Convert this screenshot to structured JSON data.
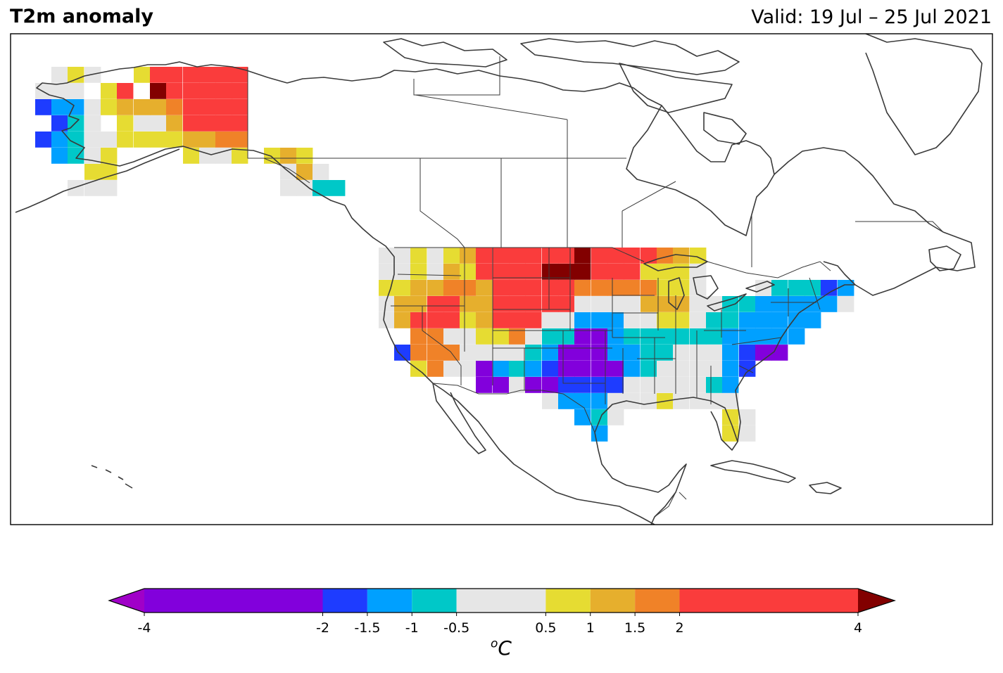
{
  "header": {
    "title": "T2m anomaly",
    "valid": "Valid: 19 Jul – 25 Jul 2021"
  },
  "colorbar": {
    "unit_base": "C",
    "unit_sup": "o",
    "levels": [
      -4,
      -2,
      -1.5,
      -1,
      -0.5,
      0.5,
      1,
      1.5,
      2,
      4
    ],
    "tick_labels": [
      "-4",
      "-2",
      "-1.5",
      "-1",
      "-0.5",
      "0.5",
      "1",
      "1.5",
      "2",
      "4"
    ],
    "colors": [
      "#8200dc",
      "#1e3cff",
      "#00a0ff",
      "#00c8c8",
      "#e6e6e6",
      "#e6dc32",
      "#e6af2d",
      "#f08228",
      "#fa3c3c"
    ],
    "under_color": "#a000c8",
    "over_color": "#820000",
    "extend": "both"
  },
  "map": {
    "region": "North America",
    "projection": "PlateCarree",
    "features": [
      "coastlines",
      "country borders",
      "US state borders",
      "Canadian province borders"
    ]
  }
}
